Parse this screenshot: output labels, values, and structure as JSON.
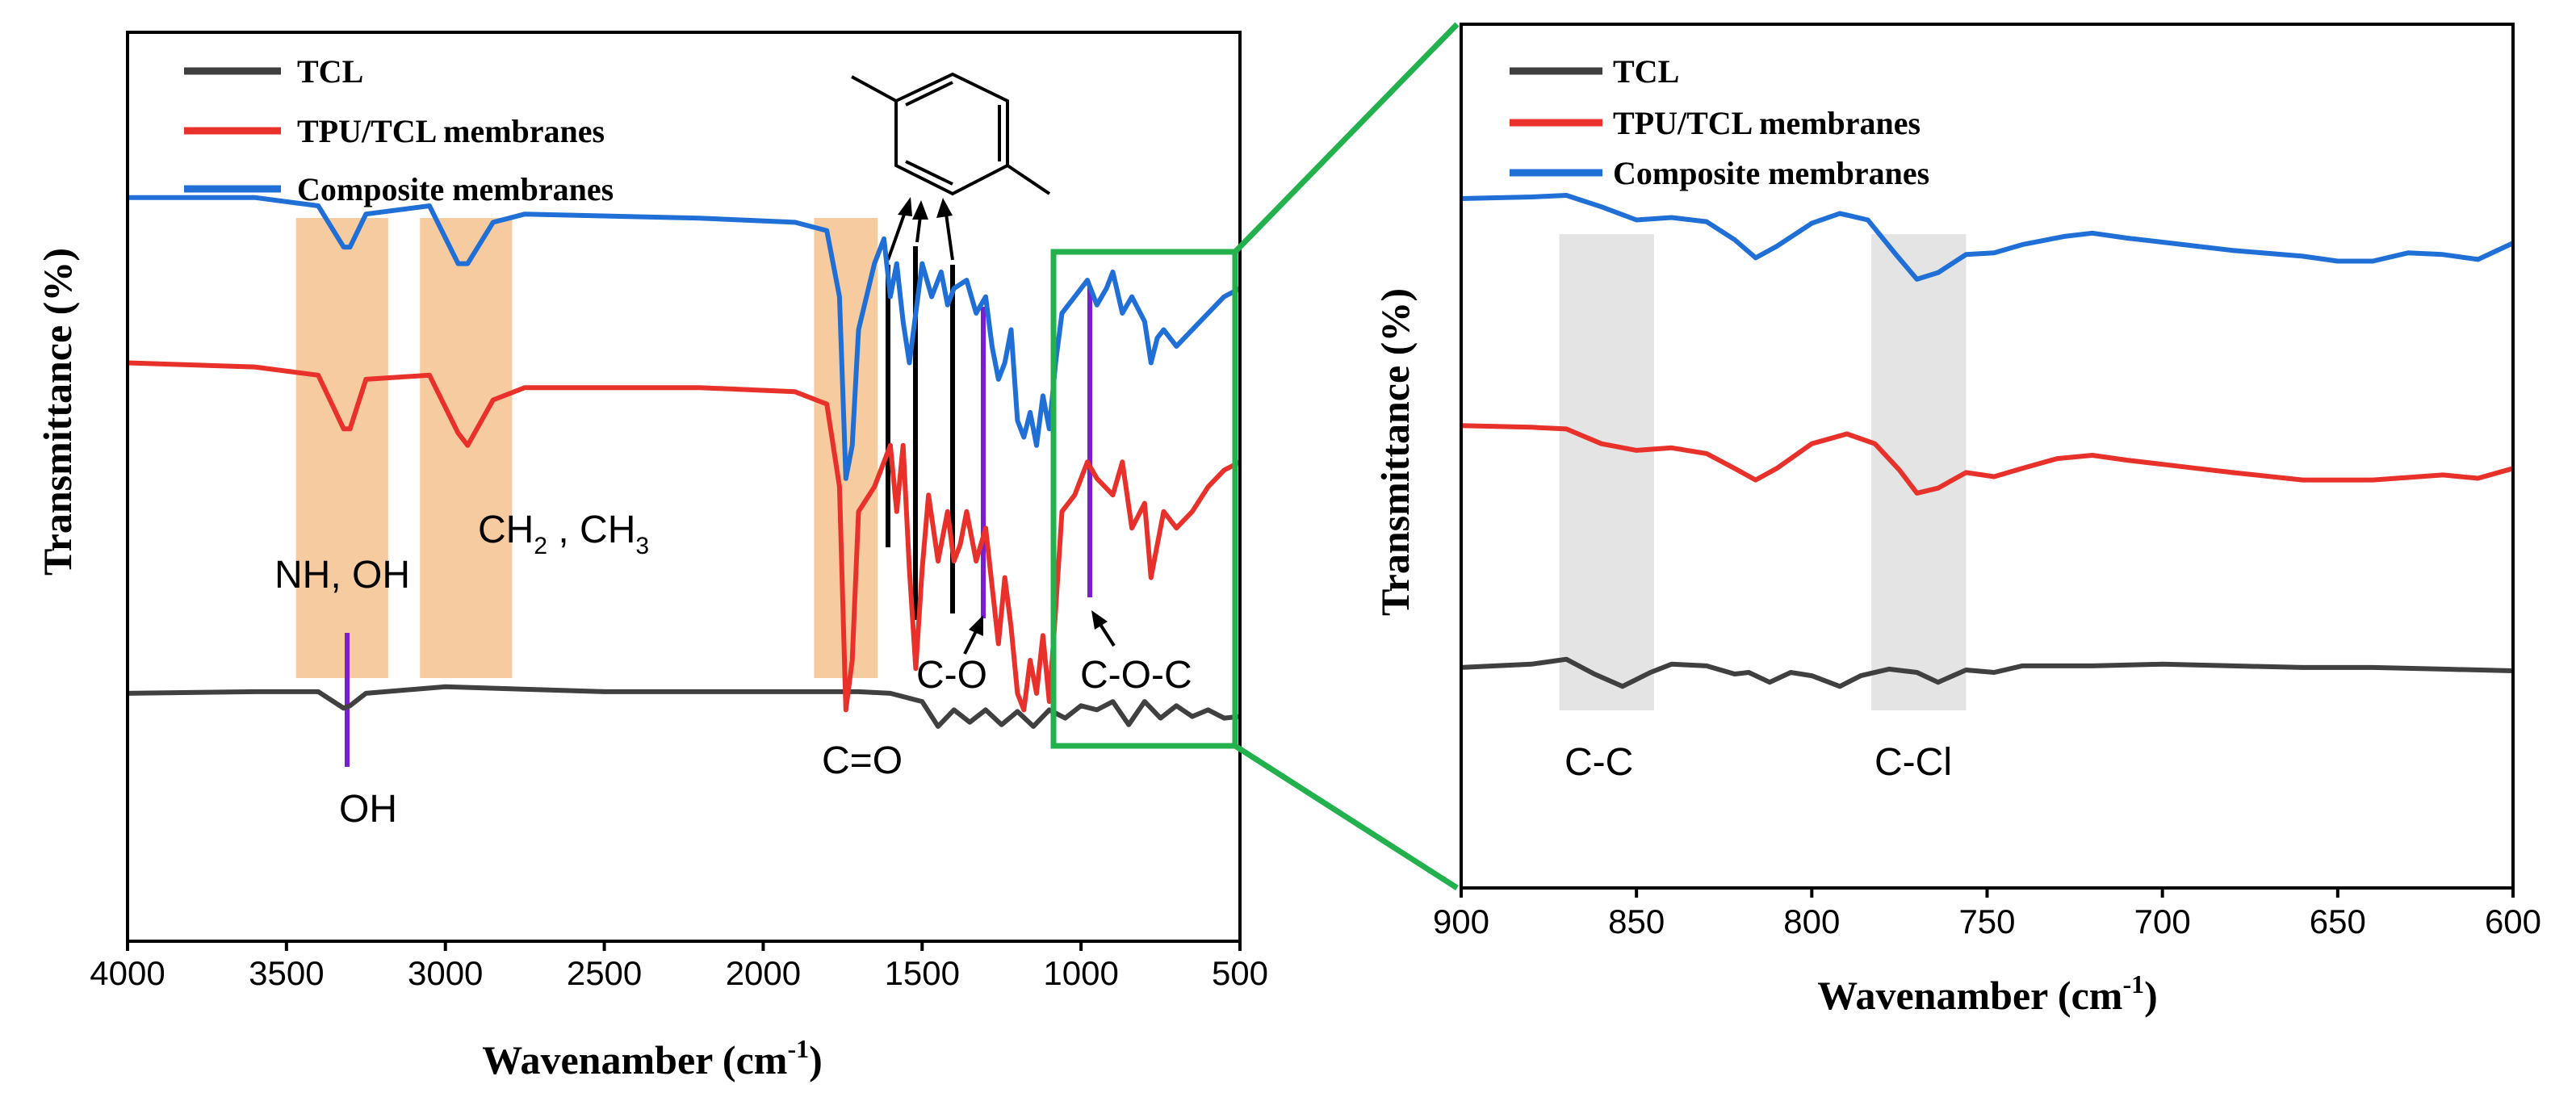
{
  "colors": {
    "TCL": "#404040",
    "TPU/TCL membranes": "#e8312a",
    "Composite membranes": "#1f6fd6",
    "band_orange": "#f7cba0",
    "band_gray": "#e4e4e4",
    "marker_purple": "#7a1fd0",
    "zoom_green": "#22b14c"
  },
  "chart_data": [
    {
      "type": "line",
      "panel": "left",
      "xlabel": "Wavenamber (cm",
      "xlabel_sup": "-1",
      "xlabel_close": ")",
      "ylabel": "Transmittance (%)",
      "xlim": [
        4000,
        500
      ],
      "xticks": [
        "4000",
        "3500",
        "3000",
        "2500",
        "2000",
        "1500",
        "1000",
        "500"
      ],
      "legend": [
        "TCL",
        "TPU/TCL membranes",
        "Composite membranes"
      ],
      "bands": [
        {
          "from": 3470,
          "to": 3180
        },
        {
          "from": 3080,
          "to": 2790
        },
        {
          "from": 1840,
          "to": 1640
        }
      ],
      "annotations": {
        "nh_oh": "NH, OH",
        "ch2_ch3": "CH",
        "ch2_sub": "2",
        "ch3_sep": " , CH",
        "ch3_sub": "3",
        "co": "C=O",
        "c_o": "C-O",
        "c_o_c": "C-O-C",
        "oh": "OH"
      },
      "series": [
        {
          "name": "TCL",
          "baseline": 0.3,
          "points": [
            [
              4000,
              0.3
            ],
            [
              3600,
              0.302
            ],
            [
              3400,
              0.302
            ],
            [
              3320,
              0.282
            ],
            [
              3300,
              0.285
            ],
            [
              3250,
              0.3
            ],
            [
              3000,
              0.308
            ],
            [
              2500,
              0.302
            ],
            [
              2000,
              0.302
            ],
            [
              1700,
              0.302
            ],
            [
              1600,
              0.3
            ],
            [
              1500,
              0.29
            ],
            [
              1450,
              0.26
            ],
            [
              1400,
              0.28
            ],
            [
              1350,
              0.265
            ],
            [
              1300,
              0.28
            ],
            [
              1250,
              0.262
            ],
            [
              1200,
              0.278
            ],
            [
              1150,
              0.26
            ],
            [
              1100,
              0.28
            ],
            [
              1050,
              0.27
            ],
            [
              1000,
              0.285
            ],
            [
              950,
              0.28
            ],
            [
              900,
              0.29
            ],
            [
              850,
              0.262
            ],
            [
              800,
              0.29
            ],
            [
              750,
              0.27
            ],
            [
              700,
              0.285
            ],
            [
              650,
              0.272
            ],
            [
              600,
              0.28
            ],
            [
              550,
              0.27
            ],
            [
              500,
              0.272
            ]
          ]
        },
        {
          "name": "TPU/TCL membranes",
          "baseline": 0.7,
          "points": [
            [
              4000,
              0.7
            ],
            [
              3600,
              0.695
            ],
            [
              3400,
              0.685
            ],
            [
              3320,
              0.62
            ],
            [
              3300,
              0.62
            ],
            [
              3250,
              0.68
            ],
            [
              3050,
              0.685
            ],
            [
              2960,
              0.615
            ],
            [
              2930,
              0.6
            ],
            [
              2850,
              0.655
            ],
            [
              2750,
              0.67
            ],
            [
              2200,
              0.67
            ],
            [
              1900,
              0.665
            ],
            [
              1800,
              0.65
            ],
            [
              1760,
              0.55
            ],
            [
              1740,
              0.28
            ],
            [
              1720,
              0.34
            ],
            [
              1700,
              0.52
            ],
            [
              1650,
              0.55
            ],
            [
              1600,
              0.6
            ],
            [
              1580,
              0.52
            ],
            [
              1560,
              0.6
            ],
            [
              1540,
              0.45
            ],
            [
              1520,
              0.33
            ],
            [
              1500,
              0.45
            ],
            [
              1480,
              0.54
            ],
            [
              1450,
              0.46
            ],
            [
              1420,
              0.52
            ],
            [
              1400,
              0.46
            ],
            [
              1380,
              0.48
            ],
            [
              1360,
              0.52
            ],
            [
              1330,
              0.46
            ],
            [
              1300,
              0.5
            ],
            [
              1280,
              0.43
            ],
            [
              1260,
              0.36
            ],
            [
              1240,
              0.44
            ],
            [
              1220,
              0.38
            ],
            [
              1200,
              0.3
            ],
            [
              1180,
              0.28
            ],
            [
              1160,
              0.34
            ],
            [
              1140,
              0.3
            ],
            [
              1120,
              0.37
            ],
            [
              1100,
              0.29
            ],
            [
              1080,
              0.4
            ],
            [
              1060,
              0.52
            ],
            [
              1020,
              0.54
            ],
            [
              980,
              0.58
            ],
            [
              950,
              0.56
            ],
            [
              900,
              0.54
            ],
            [
              870,
              0.58
            ],
            [
              840,
              0.5
            ],
            [
              800,
              0.53
            ],
            [
              780,
              0.44
            ],
            [
              760,
              0.48
            ],
            [
              740,
              0.52
            ],
            [
              700,
              0.5
            ],
            [
              650,
              0.52
            ],
            [
              600,
              0.55
            ],
            [
              550,
              0.57
            ],
            [
              500,
              0.58
            ]
          ]
        },
        {
          "name": "Composite membranes",
          "baseline": 0.9,
          "points": [
            [
              4000,
              0.9
            ],
            [
              3600,
              0.9
            ],
            [
              3400,
              0.89
            ],
            [
              3320,
              0.84
            ],
            [
              3300,
              0.84
            ],
            [
              3250,
              0.88
            ],
            [
              3050,
              0.89
            ],
            [
              2960,
              0.82
            ],
            [
              2930,
              0.82
            ],
            [
              2850,
              0.87
            ],
            [
              2750,
              0.88
            ],
            [
              2200,
              0.875
            ],
            [
              1900,
              0.87
            ],
            [
              1800,
              0.86
            ],
            [
              1760,
              0.78
            ],
            [
              1740,
              0.56
            ],
            [
              1720,
              0.6
            ],
            [
              1700,
              0.74
            ],
            [
              1650,
              0.82
            ],
            [
              1620,
              0.85
            ],
            [
              1600,
              0.78
            ],
            [
              1580,
              0.82
            ],
            [
              1560,
              0.75
            ],
            [
              1540,
              0.7
            ],
            [
              1520,
              0.76
            ],
            [
              1500,
              0.82
            ],
            [
              1470,
              0.78
            ],
            [
              1440,
              0.81
            ],
            [
              1420,
              0.77
            ],
            [
              1400,
              0.79
            ],
            [
              1360,
              0.8
            ],
            [
              1330,
              0.76
            ],
            [
              1300,
              0.78
            ],
            [
              1280,
              0.72
            ],
            [
              1260,
              0.68
            ],
            [
              1240,
              0.7
            ],
            [
              1220,
              0.74
            ],
            [
              1200,
              0.63
            ],
            [
              1180,
              0.61
            ],
            [
              1160,
              0.64
            ],
            [
              1140,
              0.6
            ],
            [
              1120,
              0.66
            ],
            [
              1100,
              0.62
            ],
            [
              1080,
              0.7
            ],
            [
              1060,
              0.76
            ],
            [
              1020,
              0.78
            ],
            [
              980,
              0.8
            ],
            [
              950,
              0.77
            ],
            [
              920,
              0.79
            ],
            [
              900,
              0.81
            ],
            [
              870,
              0.76
            ],
            [
              840,
              0.78
            ],
            [
              800,
              0.75
            ],
            [
              780,
              0.7
            ],
            [
              760,
              0.73
            ],
            [
              740,
              0.74
            ],
            [
              700,
              0.72
            ],
            [
              650,
              0.74
            ],
            [
              600,
              0.76
            ],
            [
              550,
              0.78
            ],
            [
              500,
              0.79
            ]
          ]
        }
      ]
    },
    {
      "type": "line",
      "panel": "right",
      "xlabel": "Wavenamber (cm",
      "xlabel_sup": "-1",
      "xlabel_close": ")",
      "ylabel": "Transmittance (%)",
      "xlim": [
        900,
        600
      ],
      "xticks": [
        "900",
        "850",
        "800",
        "750",
        "700",
        "650",
        "600"
      ],
      "legend": [
        "TCL",
        "TPU/TCL membranes",
        "Composite membranes"
      ],
      "bands": [
        {
          "from": 872,
          "to": 845
        },
        {
          "from": 783,
          "to": 756
        }
      ],
      "annotations": {
        "cc": "C-C",
        "ccl": "C-Cl"
      },
      "series": [
        {
          "name": "TCL",
          "points": [
            [
              900,
              0.268
            ],
            [
              880,
              0.272
            ],
            [
              870,
              0.278
            ],
            [
              862,
              0.26
            ],
            [
              854,
              0.245
            ],
            [
              846,
              0.262
            ],
            [
              840,
              0.272
            ],
            [
              830,
              0.27
            ],
            [
              822,
              0.26
            ],
            [
              818,
              0.262
            ],
            [
              812,
              0.25
            ],
            [
              806,
              0.262
            ],
            [
              800,
              0.258
            ],
            [
              792,
              0.245
            ],
            [
              786,
              0.258
            ],
            [
              778,
              0.266
            ],
            [
              770,
              0.262
            ],
            [
              764,
              0.25
            ],
            [
              756,
              0.265
            ],
            [
              748,
              0.262
            ],
            [
              740,
              0.27
            ],
            [
              720,
              0.27
            ],
            [
              700,
              0.272
            ],
            [
              680,
              0.27
            ],
            [
              660,
              0.268
            ],
            [
              640,
              0.268
            ],
            [
              620,
              0.266
            ],
            [
              600,
              0.264
            ]
          ]
        },
        {
          "name": "TPU/TCL membranes",
          "points": [
            [
              900,
              0.562
            ],
            [
              880,
              0.56
            ],
            [
              870,
              0.558
            ],
            [
              860,
              0.54
            ],
            [
              850,
              0.532
            ],
            [
              840,
              0.535
            ],
            [
              830,
              0.528
            ],
            [
              822,
              0.51
            ],
            [
              816,
              0.496
            ],
            [
              810,
              0.51
            ],
            [
              800,
              0.54
            ],
            [
              790,
              0.552
            ],
            [
              782,
              0.54
            ],
            [
              775,
              0.508
            ],
            [
              770,
              0.48
            ],
            [
              764,
              0.486
            ],
            [
              756,
              0.505
            ],
            [
              748,
              0.5
            ],
            [
              740,
              0.51
            ],
            [
              730,
              0.522
            ],
            [
              720,
              0.526
            ],
            [
              710,
              0.52
            ],
            [
              700,
              0.515
            ],
            [
              690,
              0.51
            ],
            [
              680,
              0.505
            ],
            [
              660,
              0.496
            ],
            [
              640,
              0.496
            ],
            [
              620,
              0.502
            ],
            [
              610,
              0.498
            ],
            [
              600,
              0.51
            ]
          ]
        },
        {
          "name": "Composite membranes",
          "points": [
            [
              900,
              0.838
            ],
            [
              880,
              0.84
            ],
            [
              870,
              0.842
            ],
            [
              860,
              0.828
            ],
            [
              850,
              0.812
            ],
            [
              840,
              0.815
            ],
            [
              830,
              0.81
            ],
            [
              822,
              0.788
            ],
            [
              816,
              0.766
            ],
            [
              810,
              0.78
            ],
            [
              800,
              0.808
            ],
            [
              792,
              0.82
            ],
            [
              784,
              0.812
            ],
            [
              776,
              0.77
            ],
            [
              770,
              0.74
            ],
            [
              764,
              0.748
            ],
            [
              756,
              0.77
            ],
            [
              748,
              0.772
            ],
            [
              740,
              0.782
            ],
            [
              728,
              0.792
            ],
            [
              720,
              0.796
            ],
            [
              710,
              0.79
            ],
            [
              700,
              0.785
            ],
            [
              690,
              0.78
            ],
            [
              680,
              0.775
            ],
            [
              660,
              0.768
            ],
            [
              650,
              0.762
            ],
            [
              640,
              0.762
            ],
            [
              630,
              0.772
            ],
            [
              620,
              0.77
            ],
            [
              610,
              0.764
            ],
            [
              600,
              0.784
            ]
          ]
        }
      ]
    }
  ]
}
